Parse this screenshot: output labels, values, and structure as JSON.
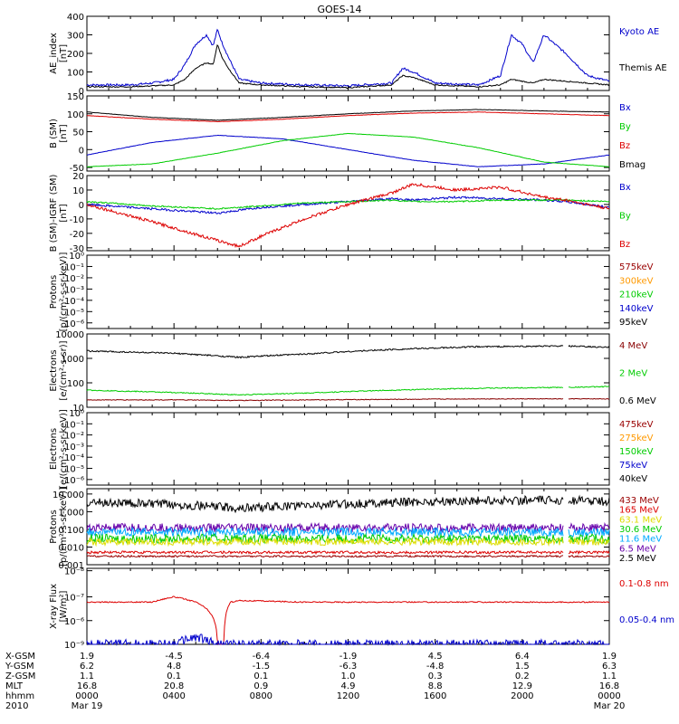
{
  "title": "GOES-14",
  "colors": {
    "black": "#000000",
    "blue": "#0000cc",
    "green": "#00cc00",
    "red": "#dd0000",
    "orange": "#ff9900",
    "darkred": "#990000",
    "cyan": "#00aaff",
    "yellow": "#dddd00",
    "purple": "#6600aa",
    "brown": "#880000"
  },
  "panels": [
    {
      "ylabel": "AE_index\n[nT]",
      "ticks": [
        "400",
        "300",
        "200",
        "100",
        "0"
      ],
      "legend": [
        {
          "text": "Kyoto AE",
          "color": "blue"
        },
        {
          "text": "Themis AE",
          "color": "black"
        }
      ]
    },
    {
      "ylabel": "B (SM)\n[nT]",
      "ticks": [
        "150",
        "100",
        "50",
        "0",
        "-50"
      ],
      "legend": [
        {
          "text": "Bx",
          "color": "blue"
        },
        {
          "text": "By",
          "color": "green"
        },
        {
          "text": "Bz",
          "color": "red"
        },
        {
          "text": "Bmag",
          "color": "black"
        }
      ]
    },
    {
      "ylabel": "B (SM)-IGRF (SM)\n[nT]",
      "ticks": [
        "20",
        "10",
        "0",
        "-10",
        "-20",
        "-30"
      ],
      "legend": [
        {
          "text": "Bx",
          "color": "blue"
        },
        {
          "text": "By",
          "color": "green"
        },
        {
          "text": "Bz",
          "color": "red"
        }
      ]
    },
    {
      "ylabel": "Protons\n[p/(cm²-s-sr-keV)]",
      "ticks": [
        "10⁰",
        "10⁻¹",
        "10⁻²",
        "10⁻³",
        "10⁻⁴",
        "10⁻⁵",
        "10⁻⁶"
      ],
      "legend": [
        {
          "text": "575keV",
          "color": "darkred"
        },
        {
          "text": "300keV",
          "color": "orange"
        },
        {
          "text": "210keV",
          "color": "green"
        },
        {
          "text": "140keV",
          "color": "blue"
        },
        {
          "text": "95keV",
          "color": "black"
        }
      ]
    },
    {
      "ylabel": "Electrons\n[e/(cm²-s-sr)]",
      "ticks": [
        "10000",
        "1000",
        "100",
        "10"
      ],
      "legend": [
        {
          "text": "4 MeV",
          "color": "brown"
        },
        {
          "text": "2 MeV",
          "color": "green"
        },
        {
          "text": "0.6 MeV",
          "color": "black"
        }
      ]
    },
    {
      "ylabel": "Electrons\n[e/(cm²-s-sr-keV)]",
      "ticks": [
        "10⁰",
        "10⁻¹",
        "10⁻²",
        "10⁻³",
        "10⁻⁴",
        "10⁻⁵",
        "10⁻⁶"
      ],
      "legend": [
        {
          "text": "475keV",
          "color": "darkred"
        },
        {
          "text": "275keV",
          "color": "orange"
        },
        {
          "text": "150keV",
          "color": "green"
        },
        {
          "text": "75keV",
          "color": "blue"
        },
        {
          "text": "40keV",
          "color": "black"
        }
      ]
    },
    {
      "ylabel": "Protons\n[p/(cm²-s-sr-keV)]",
      "ticks": [
        "10.000",
        "1.000",
        "0.100",
        "0.010",
        "0.001"
      ],
      "legend": [
        {
          "text": "433 MeV",
          "color": "darkred"
        },
        {
          "text": "165 MeV",
          "color": "red"
        },
        {
          "text": "63.1 MeV",
          "color": "yellow"
        },
        {
          "text": "30.6 MeV",
          "color": "green"
        },
        {
          "text": "11.6 MeV",
          "color": "cyan"
        },
        {
          "text": "6.5 MeV",
          "color": "purple"
        },
        {
          "text": "2.5 MeV",
          "color": "black"
        }
      ]
    },
    {
      "ylabel": "X-ray Flux\n[W/m²]",
      "ticks": [
        "10⁻⁸",
        "10⁻⁷",
        "10⁻⁶",
        "10⁻⁹"
      ],
      "legend": [
        {
          "text": "0.1-0.8 nm",
          "color": "red"
        },
        {
          "text": "0.05-0.4 nm",
          "color": "blue"
        }
      ]
    }
  ],
  "footer": {
    "rows": [
      {
        "label": "X-GSM",
        "values": [
          "1.9",
          "-4.5",
          "-6.4",
          "-1.9",
          "4.5",
          "6.4",
          "1.9"
        ]
      },
      {
        "label": "Y-GSM",
        "values": [
          "6.2",
          "4.8",
          "-1.5",
          "-6.3",
          "-4.8",
          "1.5",
          "6.3"
        ]
      },
      {
        "label": "Z-GSM",
        "values": [
          "1.1",
          "0.1",
          "0.1",
          "1.0",
          "0.3",
          "0.2",
          "1.1"
        ]
      },
      {
        "label": "MLT",
        "values": [
          "16.8",
          "20.8",
          "0.9",
          "4.9",
          "8.8",
          "12.9",
          "16.8"
        ]
      },
      {
        "label": "hhmm",
        "values": [
          "0000",
          "0400",
          "0800",
          "1200",
          "1600",
          "2000",
          "0000"
        ]
      },
      {
        "label": "2010",
        "values": [
          "Mar 19",
          "",
          "",
          "",
          "",
          "",
          "Mar 20"
        ]
      }
    ]
  },
  "chart_data": [
    {
      "type": "line",
      "title": "GOES-14",
      "ylabel": "AE_index [nT]",
      "ylim": [
        0,
        400
      ],
      "x_hours": [
        0,
        2,
        3,
        4,
        4.5,
        5,
        5.5,
        5.8,
        6,
        6.2,
        6.5,
        7,
        8,
        10,
        12,
        14,
        14.5,
        15,
        16,
        18,
        19,
        19.5,
        20,
        20.5,
        21,
        22,
        23,
        24
      ],
      "series": [
        {
          "name": "Kyoto AE",
          "values": [
            30,
            30,
            40,
            60,
            140,
            250,
            300,
            240,
            330,
            260,
            180,
            60,
            40,
            30,
            25,
            40,
            120,
            100,
            40,
            30,
            80,
            300,
            250,
            150,
            300,
            200,
            80,
            50
          ]
        },
        {
          "name": "Themis AE",
          "values": [
            20,
            20,
            25,
            30,
            60,
            120,
            150,
            140,
            250,
            180,
            120,
            40,
            30,
            20,
            15,
            30,
            80,
            70,
            30,
            20,
            30,
            60,
            50,
            40,
            60,
            50,
            40,
            30
          ]
        }
      ]
    },
    {
      "type": "line",
      "ylabel": "B (SM) [nT]",
      "ylim": [
        -50,
        150
      ],
      "x_hours": [
        0,
        3,
        6,
        9,
        12,
        15,
        18,
        21,
        24
      ],
      "series": [
        {
          "name": "Bx",
          "values": [
            -15,
            20,
            40,
            30,
            0,
            -30,
            -48,
            -40,
            -15
          ]
        },
        {
          "name": "By",
          "values": [
            -48,
            -40,
            -10,
            25,
            45,
            35,
            5,
            -35,
            -48
          ]
        },
        {
          "name": "Bz",
          "values": [
            95,
            85,
            78,
            85,
            95,
            102,
            105,
            100,
            95
          ]
        },
        {
          "name": "Bmag",
          "values": [
            105,
            90,
            82,
            90,
            100,
            108,
            112,
            108,
            105
          ]
        }
      ]
    },
    {
      "type": "line",
      "ylabel": "B (SM)-IGRF (SM) [nT]",
      "ylim": [
        -30,
        20
      ],
      "x_hours": [
        0,
        3,
        6,
        7,
        8,
        10,
        12,
        14,
        15,
        17,
        19,
        21,
        22,
        24
      ],
      "series": [
        {
          "name": "Bx",
          "values": [
            0,
            -3,
            -6,
            -4,
            -2,
            0,
            2,
            4,
            3,
            5,
            4,
            3,
            2,
            -2
          ]
        },
        {
          "name": "By",
          "values": [
            2,
            -1,
            -3,
            -2,
            -1,
            1,
            2,
            3,
            2,
            2,
            3,
            3,
            3,
            2
          ]
        },
        {
          "name": "Bz",
          "values": [
            0,
            -12,
            -25,
            -29,
            -22,
            -10,
            0,
            8,
            14,
            10,
            12,
            5,
            3,
            -3
          ]
        }
      ]
    },
    {
      "type": "line",
      "ylabel": "Protons [p/(cm²-s-sr-keV)]",
      "yscale": "log",
      "ylim": [
        1e-06,
        1
      ],
      "series": []
    },
    {
      "type": "line",
      "ylabel": "Electrons [e/(cm²-s-sr)]",
      "yscale": "log",
      "ylim": [
        10,
        10000
      ],
      "x_hours": [
        0,
        4,
        7,
        10,
        14,
        18,
        22,
        24
      ],
      "series": [
        {
          "name": "4 MeV",
          "values": [
            20,
            20,
            19,
            20,
            21,
            22,
            22,
            22
          ]
        },
        {
          "name": "2 MeV",
          "values": [
            50,
            40,
            32,
            38,
            50,
            60,
            65,
            70
          ]
        },
        {
          "name": "0.6 MeV",
          "values": [
            2000,
            1600,
            1100,
            1500,
            2300,
            3000,
            3200,
            2800
          ]
        }
      ]
    },
    {
      "type": "line",
      "ylabel": "Electrons [e/(cm²-s-sr-keV)]",
      "yscale": "log",
      "ylim": [
        1e-06,
        1
      ],
      "series": []
    },
    {
      "type": "line",
      "ylabel": "Protons [p/(cm²-s-sr-keV)]",
      "yscale": "log",
      "ylim": [
        0.001,
        10
      ],
      "x_hours": [
        0,
        4,
        7,
        10,
        14,
        18,
        22,
        24
      ],
      "series": [
        {
          "name": "2.5 MeV",
          "values": [
            3.5,
            2.5,
            1.6,
            2.2,
            3.3,
            4.2,
            4.5,
            3.8
          ]
        },
        {
          "name": "6.5 MeV",
          "values": [
            0.12,
            0.12,
            0.12,
            0.12,
            0.12,
            0.12,
            0.12,
            0.12
          ]
        },
        {
          "name": "11.6 MeV",
          "values": [
            0.07,
            0.07,
            0.07,
            0.07,
            0.07,
            0.07,
            0.07,
            0.07
          ]
        },
        {
          "name": "30.6 MeV",
          "values": [
            0.03,
            0.03,
            0.03,
            0.03,
            0.03,
            0.03,
            0.03,
            0.03
          ]
        },
        {
          "name": "63.1 MeV",
          "values": [
            0.02,
            0.02,
            0.02,
            0.02,
            0.02,
            0.02,
            0.02,
            0.02
          ]
        },
        {
          "name": "165 MeV",
          "values": [
            0.005,
            0.005,
            0.005,
            0.005,
            0.005,
            0.005,
            0.005,
            0.005
          ]
        },
        {
          "name": "433 MeV",
          "values": [
            0.003,
            0.003,
            0.003,
            0.003,
            0.003,
            0.003,
            0.003,
            0.003
          ]
        }
      ]
    },
    {
      "type": "line",
      "ylabel": "X-ray Flux [W/m²]",
      "yscale": "log",
      "x_hours": [
        0,
        3,
        4,
        5,
        6,
        6.3,
        6.6,
        7,
        10,
        14,
        18,
        22,
        24
      ],
      "series": [
        {
          "name": "0.1-0.8 nm",
          "values": [
            6e-08,
            6e-08,
            1e-07,
            6e-08,
            1e-09,
            1e-09,
            6e-08,
            7e-08,
            6e-08,
            6e-08,
            6e-08,
            6e-08,
            6e-08
          ]
        },
        {
          "name": "0.05-0.4 nm",
          "values": [
            1e-09,
            1e-09,
            1e-09,
            2e-09,
            1e-09,
            1e-09,
            1e-09,
            1e-09,
            1e-09,
            1e-09,
            1e-09,
            1e-09,
            1e-09
          ]
        }
      ]
    }
  ]
}
